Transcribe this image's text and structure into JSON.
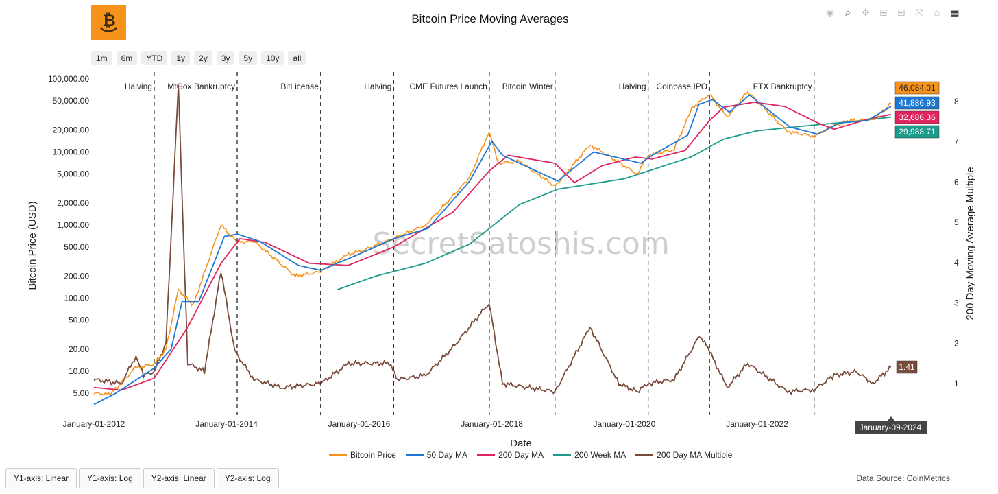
{
  "title": "Bitcoin Price Moving Averages",
  "toolbar": [
    "camera-icon",
    "zoom-icon",
    "pan-icon",
    "zoom-in-icon",
    "zoom-out-icon",
    "autoscale-icon",
    "home-icon",
    "plotly-logo-icon"
  ],
  "range_buttons": [
    "1m",
    "6m",
    "YTD",
    "1y",
    "2y",
    "3y",
    "5y",
    "10y",
    "all"
  ],
  "watermark": "SecretSatoshis.com",
  "source": "Data Source: CoinMetrics",
  "tabs": [
    "Y1-axis: Linear",
    "Y1-axis: Log",
    "Y2-axis: Linear",
    "Y2-axis: Log"
  ],
  "hover_date": "January-09-2024",
  "colors": {
    "price": "#f7931a",
    "ma50": "#1f77d4",
    "ma200": "#e0245e",
    "wk200": "#1a9c8c",
    "mult": "#7a4a3a"
  },
  "chart_data": {
    "type": "line",
    "xlabel": "Date",
    "ylabel": "Bitcoin Price (USD)",
    "y2label": "200 Day Moving Average Multiple",
    "y_scale": "log",
    "x_ticks": [
      "January-01-2012",
      "January-01-2014",
      "January-01-2016",
      "January-01-2018",
      "January-01-2020",
      "January-01-2022"
    ],
    "y_ticks": [
      "5.00",
      "10.00",
      "20.00",
      "50.00",
      "100.00",
      "200.00",
      "500.00",
      "1,000.00",
      "2,000.00",
      "5,000.00",
      "10,000.00",
      "20,000.00",
      "50,000.00",
      "100,000.00"
    ],
    "y2_ticks": [
      "1",
      "2",
      "3",
      "4",
      "5",
      "6",
      "7",
      "8"
    ],
    "events": [
      {
        "label": "Halving",
        "date": "2012-11-28"
      },
      {
        "label": "MtGox Bankruptcy",
        "date": "2014-02-28"
      },
      {
        "label": "BitLicense",
        "date": "2015-06-03"
      },
      {
        "label": "Halving",
        "date": "2016-07-09"
      },
      {
        "label": "CME Futures Launch",
        "date": "2017-12-18"
      },
      {
        "label": "Bitcoin Winter",
        "date": "2018-12-15"
      },
      {
        "label": "Halving",
        "date": "2020-05-11"
      },
      {
        "label": "Coinbase IPO",
        "date": "2021-04-14"
      },
      {
        "label": "FTX Bankruptcy",
        "date": "2022-11-11"
      }
    ],
    "series": [
      {
        "name": "Bitcoin Price",
        "key": "price",
        "axis": "y",
        "dates": [
          "2012-01-01",
          "2012-04-01",
          "2012-08-15",
          "2012-11-28",
          "2013-02-01",
          "2013-04-10",
          "2013-07-01",
          "2013-11-30",
          "2014-02-28",
          "2014-06-01",
          "2015-01-14",
          "2015-06-03",
          "2015-11-04",
          "2016-01-01",
          "2016-07-09",
          "2017-01-01",
          "2017-06-01",
          "2017-09-01",
          "2017-12-17",
          "2018-02-06",
          "2018-06-01",
          "2018-12-15",
          "2019-06-26",
          "2019-09-01",
          "2020-03-12",
          "2020-05-11",
          "2020-10-01",
          "2021-01-08",
          "2021-04-14",
          "2021-07-20",
          "2021-11-10",
          "2022-06-18",
          "2022-11-11",
          "2023-03-01",
          "2023-06-01",
          "2023-10-01",
          "2024-01-09"
        ],
        "values": [
          5,
          4.8,
          11,
          12.5,
          20,
          130,
          80,
          1000,
          580,
          600,
          200,
          230,
          400,
          430,
          650,
          1000,
          2500,
          4500,
          19000,
          7000,
          7500,
          3400,
          12500,
          10000,
          5000,
          9000,
          10800,
          40000,
          62000,
          30000,
          67000,
          19000,
          16500,
          23000,
          27000,
          27500,
          46084
        ]
      },
      {
        "name": "50 Day MA",
        "key": "ma50",
        "axis": "y",
        "dates": [
          "2012-01-01",
          "2012-05-01",
          "2012-11-28",
          "2013-03-01",
          "2013-05-01",
          "2013-08-01",
          "2013-12-20",
          "2014-03-01",
          "2014-07-01",
          "2015-02-01",
          "2015-06-03",
          "2016-01-01",
          "2016-07-09",
          "2017-01-15",
          "2017-09-01",
          "2018-01-01",
          "2018-03-01",
          "2018-12-31",
          "2019-07-15",
          "2019-10-01",
          "2020-04-01",
          "2020-06-01",
          "2020-12-15",
          "2021-02-15",
          "2021-05-01",
          "2021-08-01",
          "2021-11-20",
          "2022-07-01",
          "2022-12-01",
          "2023-04-01",
          "2023-09-01",
          "2024-01-09"
        ],
        "values": [
          3.5,
          5,
          11,
          20,
          90,
          90,
          700,
          750,
          600,
          280,
          240,
          400,
          650,
          900,
          4000,
          14000,
          9000,
          4000,
          10000,
          9000,
          7000,
          9000,
          17000,
          45000,
          52000,
          35000,
          60000,
          22000,
          17500,
          25000,
          27000,
          41887
        ]
      },
      {
        "name": "200 Day MA",
        "key": "ma200",
        "axis": "y",
        "dates": [
          "2012-01-01",
          "2012-06-01",
          "2012-11-28",
          "2013-06-01",
          "2013-12-01",
          "2014-03-15",
          "2014-08-01",
          "2015-04-01",
          "2015-11-01",
          "2016-07-09",
          "2017-06-01",
          "2017-12-17",
          "2018-04-01",
          "2018-12-15",
          "2019-04-01",
          "2019-09-01",
          "2020-03-01",
          "2020-06-01",
          "2020-12-01",
          "2021-04-14",
          "2021-07-01",
          "2021-12-15",
          "2022-06-01",
          "2022-12-01",
          "2023-03-01",
          "2023-09-01",
          "2024-01-09"
        ],
        "values": [
          6,
          5.5,
          8,
          40,
          300,
          650,
          580,
          300,
          280,
          500,
          1500,
          5500,
          9000,
          7000,
          3800,
          6500,
          8500,
          8000,
          10500,
          27000,
          41000,
          48000,
          42000,
          25000,
          20500,
          28000,
          32686
        ]
      },
      {
        "name": "200 Week MA",
        "key": "wk200",
        "axis": "y",
        "dates": [
          "2015-09-01",
          "2016-04-01",
          "2017-01-01",
          "2017-09-01",
          "2018-06-01",
          "2019-01-01",
          "2020-01-01",
          "2021-01-01",
          "2021-07-01",
          "2022-01-01",
          "2022-09-01",
          "2023-06-01",
          "2024-01-09"
        ],
        "values": [
          130,
          200,
          300,
          550,
          1900,
          3100,
          4300,
          8500,
          15000,
          19500,
          22500,
          26000,
          29989
        ]
      },
      {
        "name": "200 Day MA Multiple",
        "key": "mult",
        "axis": "y2",
        "dates": [
          "2012-01-01",
          "2012-06-01",
          "2012-08-20",
          "2012-10-01",
          "2012-11-28",
          "2013-02-01",
          "2013-04-10",
          "2013-06-01",
          "2013-09-01",
          "2013-12-01",
          "2014-02-15",
          "2014-06-01",
          "2014-11-01",
          "2015-06-03",
          "2015-11-04",
          "2016-06-15",
          "2016-08-01",
          "2017-01-01",
          "2017-06-01",
          "2017-12-17",
          "2018-03-01",
          "2018-12-15",
          "2019-06-26",
          "2019-12-01",
          "2020-03-12",
          "2020-05-11",
          "2020-10-01",
          "2021-02-20",
          "2021-04-14",
          "2021-07-20",
          "2021-11-10",
          "2022-06-18",
          "2022-11-11",
          "2023-03-01",
          "2023-07-01",
          "2023-10-01",
          "2024-01-09"
        ],
        "values": [
          1.1,
          1.0,
          1.7,
          1.2,
          1.3,
          2.0,
          8.4,
          1.5,
          1.3,
          3.8,
          1.8,
          1.1,
          0.9,
          1.0,
          1.5,
          1.5,
          1.1,
          1.2,
          1.9,
          3.0,
          1.0,
          0.8,
          2.4,
          1.0,
          0.8,
          1.0,
          1.1,
          2.2,
          1.8,
          0.9,
          1.5,
          0.8,
          0.85,
          1.2,
          1.3,
          1.0,
          1.41
        ]
      }
    ],
    "end_labels": [
      {
        "series": "Bitcoin Price",
        "text": "46,084.01"
      },
      {
        "series": "50 Day MA",
        "text": "41,886.93"
      },
      {
        "series": "200 Day MA",
        "text": "32,686.36"
      },
      {
        "series": "200 Week MA",
        "text": "29,988.71"
      },
      {
        "series": "200 Day MA Multiple",
        "text": "1.41"
      }
    ]
  }
}
